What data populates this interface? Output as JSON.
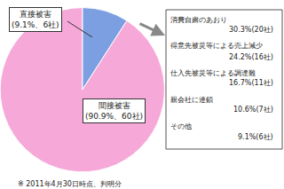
{
  "chart_data": {
    "type": "pie",
    "categories": [
      "直接被害",
      "間接被害"
    ],
    "values": [
      9.1,
      90.9
    ],
    "value_labels": [
      "(9.1%、6社)",
      "(90.9%、60社)"
    ],
    "colors": [
      "#7b9fe0",
      "#f6a9d9"
    ],
    "data_labels": true,
    "breakdown": {
      "categories": [
        "消費自粛のあおり",
        "得意先被災等による売上減少",
        "仕入先被災等による調達難",
        "親会社に連鎖",
        "その他"
      ],
      "value_labels": [
        "30.3%(20社)",
        "24.2%(16社)",
        "16.7%(11社)",
        "10.6%(7社)",
        "9.1%(6社)"
      ]
    },
    "note": "※ 2011年4月30日時点、判明分"
  }
}
